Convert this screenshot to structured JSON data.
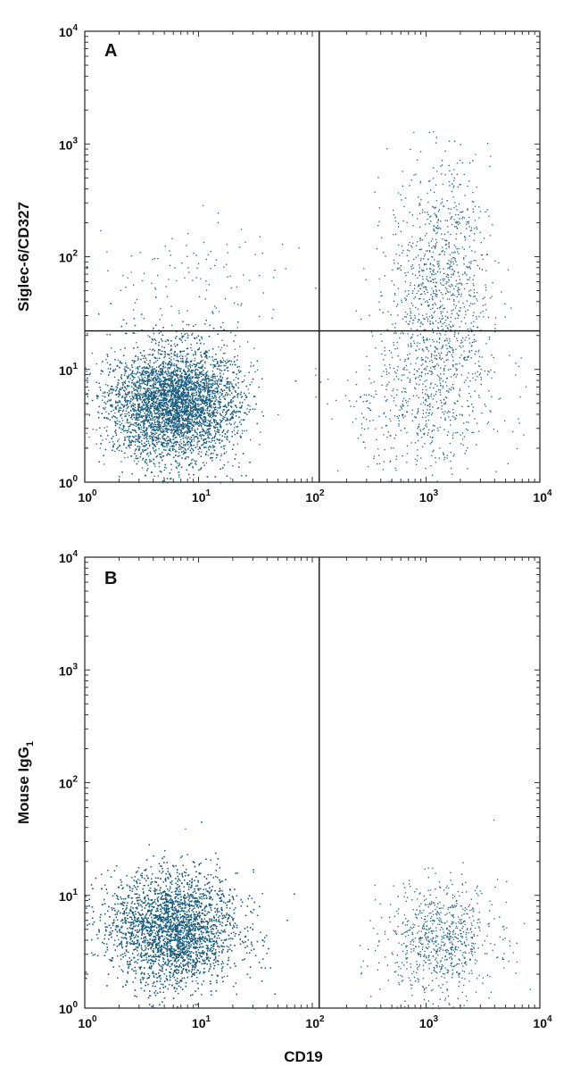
{
  "chart_data": [
    {
      "type": "scatter",
      "panel_label": "A",
      "xscale": "log",
      "yscale": "log",
      "xlim": [
        1,
        10000
      ],
      "ylim": [
        1,
        10000
      ],
      "xticks": [
        {
          "value": 1,
          "base": "10",
          "exp": "0"
        },
        {
          "value": 10,
          "base": "10",
          "exp": "1"
        },
        {
          "value": 100,
          "base": "10",
          "exp": "2"
        },
        {
          "value": 1000,
          "base": "10",
          "exp": "3"
        },
        {
          "value": 10000,
          "base": "10",
          "exp": "4"
        }
      ],
      "yticks": [
        {
          "value": 1,
          "base": "10",
          "exp": "0"
        },
        {
          "value": 10,
          "base": "10",
          "exp": "1"
        },
        {
          "value": 100,
          "base": "10",
          "exp": "2"
        },
        {
          "value": 1000,
          "base": "10",
          "exp": "3"
        },
        {
          "value": 10000,
          "base": "10",
          "exp": "4"
        }
      ],
      "xlabel": "",
      "ylabel": "Siglec-6/CD327",
      "ylabel_sub": "",
      "quadrant_gate": {
        "x": 115,
        "y": 22
      },
      "point_color": "#1a5e82",
      "populations": [
        {
          "center_x": 6,
          "center_y": 5,
          "spread_x_decades": 0.28,
          "spread_y_decades": 0.25,
          "count": 11000
        },
        {
          "center_x": 1300,
          "center_y": 50,
          "spread_x_decades": 0.22,
          "spread_y_decades": 0.55,
          "count": 1100
        },
        {
          "center_x": 900,
          "center_y": 5,
          "spread_x_decades": 0.35,
          "spread_y_decades": 0.3,
          "count": 500
        },
        {
          "center_x": 10,
          "center_y": 60,
          "spread_x_decades": 0.5,
          "spread_y_decades": 0.3,
          "count": 120
        }
      ]
    },
    {
      "type": "scatter",
      "panel_label": "B",
      "xscale": "log",
      "yscale": "log",
      "xlim": [
        1,
        10000
      ],
      "ylim": [
        1,
        10000
      ],
      "xticks": [
        {
          "value": 1,
          "base": "10",
          "exp": "0"
        },
        {
          "value": 10,
          "base": "10",
          "exp": "1"
        },
        {
          "value": 100,
          "base": "10",
          "exp": "2"
        },
        {
          "value": 1000,
          "base": "10",
          "exp": "3"
        },
        {
          "value": 10000,
          "base": "10",
          "exp": "4"
        }
      ],
      "yticks": [
        {
          "value": 1,
          "base": "10",
          "exp": "0"
        },
        {
          "value": 10,
          "base": "10",
          "exp": "1"
        },
        {
          "value": 100,
          "base": "10",
          "exp": "2"
        },
        {
          "value": 1000,
          "base": "10",
          "exp": "3"
        },
        {
          "value": 10000,
          "base": "10",
          "exp": "4"
        }
      ],
      "xlabel": "CD19",
      "ylabel": "Mouse IgG",
      "ylabel_sub": "1",
      "vertical_gate": {
        "x": 115
      },
      "point_color": "#1a5e82",
      "populations": [
        {
          "center_x": 6,
          "center_y": 5,
          "spread_x_decades": 0.28,
          "spread_y_decades": 0.25,
          "count": 11000
        },
        {
          "center_x": 1300,
          "center_y": 4,
          "spread_x_decades": 0.25,
          "spread_y_decades": 0.25,
          "count": 800
        }
      ]
    }
  ]
}
